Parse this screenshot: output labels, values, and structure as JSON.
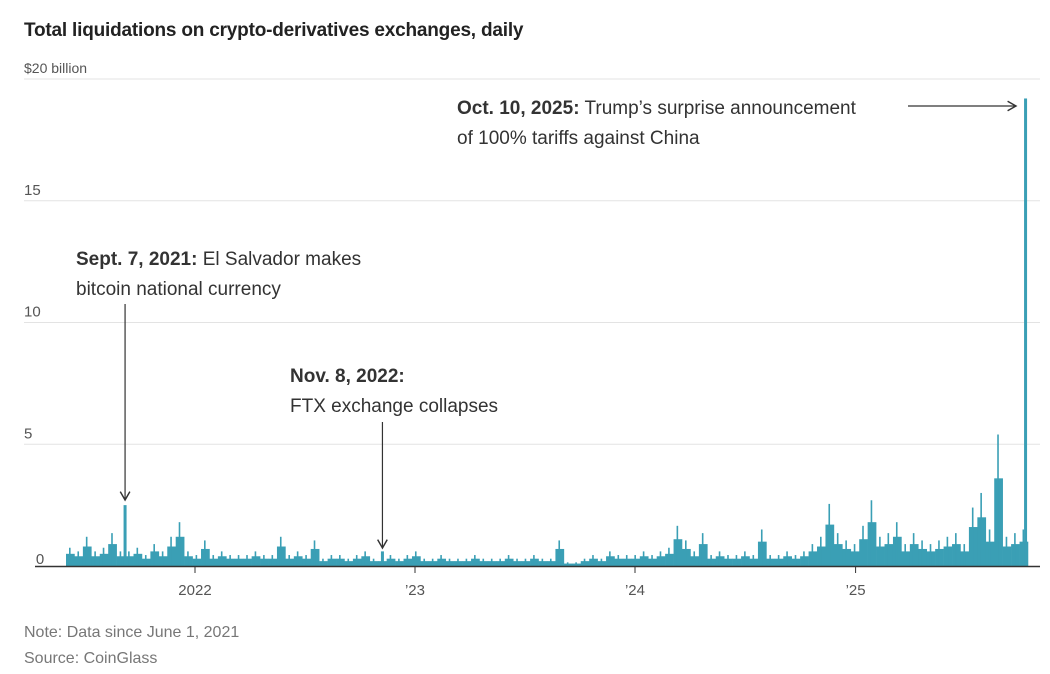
{
  "chart_data": {
    "type": "bar",
    "title": "Total liquidations on crypto-derivatives exchanges, daily",
    "ylabel": "$ billion",
    "ylim": [
      0,
      20
    ],
    "yticks": [
      {
        "value": 0,
        "label": "0"
      },
      {
        "value": 5,
        "label": "5"
      },
      {
        "value": 10,
        "label": "10"
      },
      {
        "value": 15,
        "label": "15"
      },
      {
        "value": 20,
        "label": "$20 billion"
      }
    ],
    "xrange": [
      "2021-06-01",
      "2025-10-10"
    ],
    "xticks": [
      {
        "date": "2022-01-01",
        "label": "2022"
      },
      {
        "date": "2023-01-01",
        "label": "’23"
      },
      {
        "date": "2024-01-01",
        "label": "’24"
      },
      {
        "date": "2025-01-01",
        "label": "’25"
      }
    ],
    "grid": true,
    "color": "#3a9fb5",
    "series_start": "2021-06-01",
    "interval_days": 14,
    "values": [
      0.5,
      0.4,
      0.8,
      0.4,
      0.5,
      0.9,
      0.4,
      0.4,
      0.5,
      0.3,
      0.6,
      0.4,
      0.8,
      1.2,
      0.4,
      0.3,
      0.7,
      0.3,
      0.4,
      0.3,
      0.3,
      0.3,
      0.4,
      0.3,
      0.3,
      0.8,
      0.3,
      0.4,
      0.3,
      0.7,
      0.2,
      0.3,
      0.3,
      0.2,
      0.3,
      0.4,
      0.2,
      0.2,
      0.3,
      0.2,
      0.3,
      0.4,
      0.2,
      0.2,
      0.3,
      0.2,
      0.2,
      0.2,
      0.3,
      0.2,
      0.2,
      0.2,
      0.3,
      0.2,
      0.2,
      0.3,
      0.2,
      0.2,
      0.7,
      0.1,
      0.1,
      0.2,
      0.3,
      0.2,
      0.4,
      0.3,
      0.3,
      0.3,
      0.4,
      0.3,
      0.4,
      0.5,
      1.1,
      0.7,
      0.4,
      0.9,
      0.3,
      0.4,
      0.3,
      0.3,
      0.4,
      0.3,
      1.0,
      0.3,
      0.3,
      0.4,
      0.3,
      0.4,
      0.6,
      0.8,
      1.7,
      0.9,
      0.7,
      0.6,
      1.1,
      1.8,
      0.8,
      0.9,
      1.2,
      0.6,
      0.9,
      0.7,
      0.6,
      0.7,
      0.8,
      0.9,
      0.6,
      1.6,
      2.0,
      1.0,
      3.6,
      0.8,
      0.9,
      1.0
    ],
    "spikes": [
      {
        "date": "2021-09-07",
        "value": 2.5
      },
      {
        "date": "2022-11-08",
        "value": 0.6
      },
      {
        "date": "2025-10-10",
        "value": 19.2
      }
    ],
    "annotations": [
      {
        "bold": "Oct. 10, 2025:",
        "line1": " Trump’s surprise announcement",
        "line2": "of 100% tariffs against China"
      },
      {
        "bold": "Sept. 7, 2021:",
        "line1": " El Salvador makes",
        "line2": "bitcoin national currency"
      },
      {
        "bold": "Nov. 8, 2022:",
        "line1": "",
        "line2": "FTX exchange collapses"
      }
    ]
  },
  "footer": {
    "note": "Note: Data since June 1, 2021",
    "source": "Source: CoinGlass"
  }
}
